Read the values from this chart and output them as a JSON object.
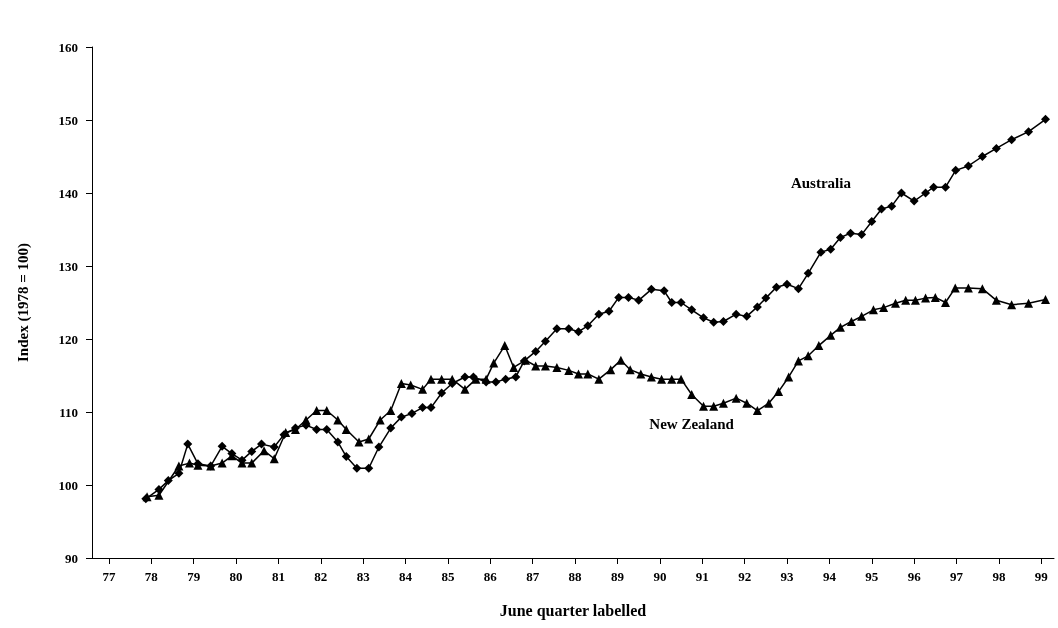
{
  "chart_data": {
    "type": "line",
    "xlabel": "June quarter labelled",
    "ylabel": "Index (1978 = 100)",
    "xlim": [
      76.6,
      99.3
    ],
    "xticks": [
      77,
      78,
      79,
      80,
      81,
      82,
      83,
      84,
      85,
      86,
      87,
      88,
      89,
      90,
      91,
      92,
      93,
      94,
      95,
      96,
      97,
      98,
      99
    ],
    "ylim": [
      90,
      160
    ],
    "yticks": [
      90,
      100,
      110,
      120,
      130,
      140,
      150,
      160
    ],
    "grid": false,
    "legend": false,
    "series": [
      {
        "name": "Australia",
        "color": "#000000",
        "marker": "diamond",
        "x": [
          77.87,
          78.18,
          78.4,
          78.65,
          78.86,
          79.1,
          79.4,
          79.67,
          79.9,
          80.14,
          80.37,
          80.6,
          80.9,
          81.13,
          81.4,
          81.65,
          81.9,
          82.14,
          82.4,
          82.6,
          82.85,
          83.13,
          83.37,
          83.65,
          83.9,
          84.15,
          84.4,
          84.6,
          84.85,
          85.1,
          85.4,
          85.6,
          85.9,
          86.13,
          86.36,
          86.6,
          86.8,
          87.07,
          87.3,
          87.57,
          87.85,
          88.08,
          88.3,
          88.56,
          88.8,
          89.03,
          89.26,
          89.5,
          89.8,
          90.1,
          90.28,
          90.5,
          90.75,
          91.03,
          91.27,
          91.5,
          91.8,
          92.05,
          92.3,
          92.5,
          92.75,
          93.0,
          93.27,
          93.5,
          93.8,
          94.03,
          94.26,
          94.5,
          94.76,
          95.0,
          95.23,
          95.47,
          95.7,
          96.0,
          96.27,
          96.46,
          96.74,
          96.98,
          97.28,
          97.61,
          97.94,
          98.3,
          98.7,
          99.1
        ],
        "values": [
          98.1,
          99.4,
          100.6,
          101.6,
          105.6,
          102.9,
          102.6,
          105.3,
          104.3,
          103.4,
          104.6,
          105.6,
          105.2,
          106.9,
          107.8,
          108.2,
          107.6,
          107.6,
          105.9,
          103.9,
          102.3,
          102.3,
          105.2,
          107.8,
          109.3,
          109.8,
          110.6,
          110.6,
          112.6,
          113.9,
          114.8,
          114.8,
          114.1,
          114.1,
          114.5,
          114.8,
          117.0,
          118.3,
          119.7,
          121.4,
          121.4,
          121.0,
          121.8,
          123.4,
          123.8,
          125.7,
          125.7,
          125.3,
          126.8,
          126.6,
          125.0,
          125.0,
          124.0,
          122.9,
          122.3,
          122.4,
          123.4,
          123.1,
          124.4,
          125.6,
          127.1,
          127.5,
          126.9,
          129.0,
          131.9,
          132.3,
          133.9,
          134.5,
          134.3,
          136.1,
          137.8,
          138.2,
          140.0,
          138.9,
          140.0,
          140.8,
          140.8,
          143.1,
          143.7,
          145.0,
          146.1,
          147.3,
          148.4,
          150.1
        ]
      },
      {
        "name": "New Zealand",
        "color": "#000000",
        "marker": "triangle",
        "x": [
          77.9,
          78.18,
          78.65,
          78.9,
          79.1,
          79.4,
          79.67,
          79.9,
          80.14,
          80.37,
          80.66,
          80.9,
          81.17,
          81.4,
          81.65,
          81.9,
          82.14,
          82.4,
          82.6,
          82.9,
          83.13,
          83.4,
          83.65,
          83.9,
          84.12,
          84.4,
          84.6,
          84.85,
          85.1,
          85.4,
          85.66,
          85.9,
          86.08,
          86.34,
          86.55,
          86.83,
          87.07,
          87.3,
          87.57,
          87.85,
          88.08,
          88.3,
          88.56,
          88.84,
          89.08,
          89.3,
          89.55,
          89.8,
          90.04,
          90.28,
          90.5,
          90.75,
          91.03,
          91.27,
          91.5,
          91.8,
          92.05,
          92.3,
          92.57,
          92.8,
          93.04,
          93.27,
          93.5,
          93.75,
          94.03,
          94.26,
          94.52,
          94.76,
          95.04,
          95.28,
          95.56,
          95.8,
          96.03,
          96.27,
          96.5,
          96.74,
          96.97,
          97.28,
          97.61,
          97.94,
          98.3,
          98.7,
          99.1
        ],
        "values": [
          98.4,
          98.6,
          102.6,
          103.0,
          102.7,
          102.6,
          103.0,
          104.0,
          103.0,
          103.0,
          104.7,
          103.6,
          107.2,
          107.6,
          108.9,
          110.2,
          110.2,
          108.9,
          107.6,
          105.9,
          106.3,
          108.9,
          110.2,
          113.9,
          113.7,
          113.1,
          114.5,
          114.5,
          114.5,
          113.1,
          114.5,
          114.5,
          116.7,
          119.1,
          116.1,
          117.1,
          116.3,
          116.3,
          116.1,
          115.7,
          115.2,
          115.2,
          114.5,
          115.8,
          117.1,
          115.8,
          115.2,
          114.8,
          114.5,
          114.5,
          114.5,
          112.4,
          110.8,
          110.8,
          111.2,
          111.9,
          111.2,
          110.2,
          111.2,
          112.8,
          114.8,
          117.0,
          117.7,
          119.1,
          120.5,
          121.6,
          122.4,
          123.1,
          124.0,
          124.3,
          124.9,
          125.3,
          125.3,
          125.6,
          125.7,
          125.0,
          127.0,
          127.0,
          126.9,
          125.3,
          124.7,
          124.9,
          125.4
        ]
      }
    ]
  }
}
